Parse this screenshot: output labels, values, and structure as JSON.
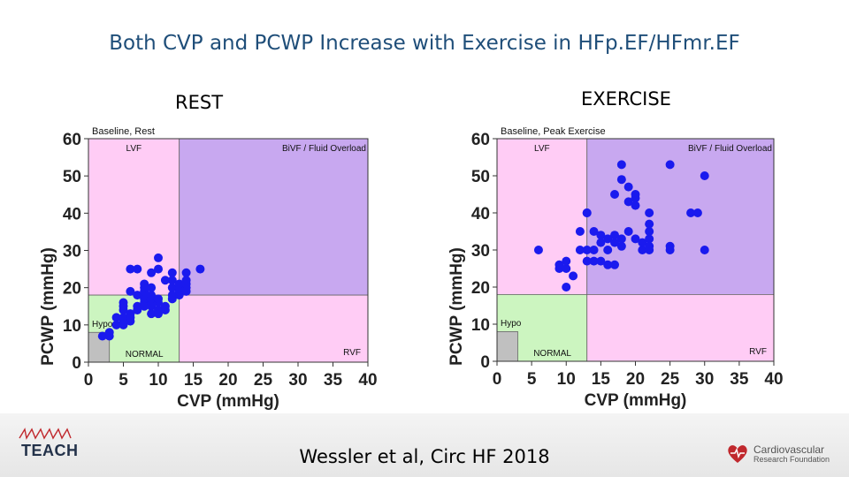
{
  "slide": {
    "title": "Both CVP and PCWP Increase with Exercise in HFp.EF/HFmr.EF",
    "citation": "Wessler et al, Circ HF 2018",
    "logo_left": "TEACH",
    "logo_right_line1": "Cardiovascular",
    "logo_right_line2": "Research Foundation"
  },
  "colors": {
    "title": "#1f4e79",
    "lvf_rvf_region": "#ffccf5",
    "bivf_region": "#c8a8f0",
    "normal_region": "#ccf5c0",
    "hypo_region": "#c0c0c0",
    "dot": "#1a1aee"
  },
  "chart_data": [
    {
      "type": "scatter",
      "panel_label": "REST",
      "title": "Baseline, Rest",
      "xlabel": "CVP (mmHg)",
      "ylabel": "PCWP (mmHg)",
      "xlim": [
        0,
        40
      ],
      "ylim": [
        0,
        60
      ],
      "xticks": [
        0,
        5,
        10,
        15,
        20,
        25,
        30,
        35,
        40
      ],
      "yticks": [
        0,
        10,
        20,
        30,
        40,
        50,
        60
      ],
      "regions": [
        {
          "name": "LVF",
          "x": [
            0,
            13
          ],
          "y": [
            18,
            60
          ]
        },
        {
          "name": "BiVF / Fluid Overload",
          "x": [
            13,
            40
          ],
          "y": [
            18,
            60
          ]
        },
        {
          "name": "NORMAL",
          "x": [
            0,
            13
          ],
          "y": [
            0,
            18
          ]
        },
        {
          "name": "RVF",
          "x": [
            13,
            40
          ],
          "y": [
            0,
            18
          ]
        },
        {
          "name": "Hypo",
          "x": [
            0,
            3
          ],
          "y": [
            0,
            8
          ]
        }
      ],
      "x": [
        2,
        3,
        3,
        4,
        4,
        5,
        5,
        5,
        5,
        5,
        5,
        6,
        6,
        6,
        6,
        6,
        7,
        7,
        7,
        7,
        8,
        8,
        8,
        8,
        8,
        8,
        8,
        9,
        9,
        9,
        9,
        9,
        9,
        9,
        10,
        10,
        10,
        10,
        10,
        10,
        11,
        11,
        11,
        12,
        12,
        12,
        12,
        12,
        13,
        13,
        13,
        13,
        14,
        14,
        14,
        14,
        14,
        16
      ],
      "y": [
        7,
        7,
        8,
        10,
        12,
        10,
        11,
        12,
        14,
        15,
        16,
        11,
        12,
        13,
        25,
        19,
        14,
        15,
        18,
        25,
        15,
        16,
        17,
        18,
        19,
        20,
        21,
        13,
        15,
        16,
        17,
        18,
        20,
        24,
        13,
        14,
        16,
        17,
        25,
        28,
        14,
        15,
        22,
        17,
        18,
        20,
        22,
        24,
        18,
        19,
        20,
        21,
        19,
        20,
        21,
        22,
        24,
        25
      ]
    },
    {
      "type": "scatter",
      "panel_label": "EXERCISE",
      "title": "Baseline, Peak Exercise",
      "xlabel": "CVP (mmHg)",
      "ylabel": "PCWP (mmHg)",
      "xlim": [
        0,
        40
      ],
      "ylim": [
        0,
        60
      ],
      "xticks": [
        0,
        5,
        10,
        15,
        20,
        25,
        30,
        35,
        40
      ],
      "yticks": [
        0,
        10,
        20,
        30,
        40,
        50,
        60
      ],
      "regions": [
        {
          "name": "LVF",
          "x": [
            0,
            13
          ],
          "y": [
            18,
            60
          ]
        },
        {
          "name": "BiVF / Fluid Overload",
          "x": [
            13,
            40
          ],
          "y": [
            18,
            60
          ]
        },
        {
          "name": "NORMAL",
          "x": [
            0,
            13
          ],
          "y": [
            0,
            18
          ]
        },
        {
          "name": "RVF",
          "x": [
            13,
            40
          ],
          "y": [
            0,
            18
          ]
        },
        {
          "name": "Hypo",
          "x": [
            0,
            3
          ],
          "y": [
            0,
            8
          ]
        }
      ],
      "x": [
        6,
        9,
        9,
        10,
        10,
        10,
        11,
        12,
        12,
        13,
        13,
        13,
        13,
        14,
        14,
        14,
        15,
        15,
        15,
        16,
        16,
        16,
        17,
        17,
        17,
        17,
        18,
        18,
        18,
        18,
        19,
        19,
        19,
        20,
        20,
        20,
        20,
        21,
        21,
        22,
        22,
        22,
        22,
        22,
        22,
        25,
        25,
        25,
        28,
        29,
        30,
        30
      ],
      "y": [
        30,
        25,
        26,
        25,
        27,
        20,
        23,
        30,
        35,
        27,
        40,
        40,
        30,
        27,
        30,
        35,
        27,
        32,
        34,
        26,
        30,
        33,
        26,
        32,
        34,
        45,
        31,
        33,
        49,
        53,
        35,
        43,
        47,
        33,
        42,
        44,
        45,
        30,
        32,
        30,
        31,
        33,
        35,
        37,
        40,
        30,
        31,
        53,
        40,
        40,
        30,
        50
      ]
    }
  ]
}
